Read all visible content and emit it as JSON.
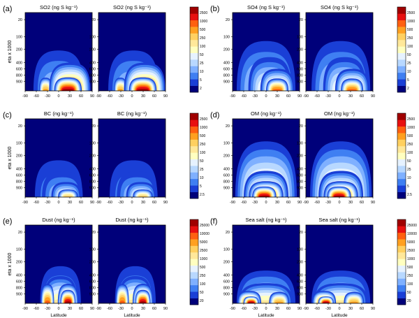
{
  "chart_data": [
    {
      "type": "heatmap",
      "panel_label": "(a)",
      "titles": [
        "SO2 (ng S kg⁻¹)",
        "SO2 (ng S kg⁻¹)"
      ],
      "xlabel": "",
      "ylabel": "eta x 1000",
      "xticks": [
        "-90",
        "-60",
        "-30",
        "0",
        "30",
        "60",
        "90"
      ],
      "yticks": [
        "20",
        "100",
        "200",
        "400",
        "600",
        "800",
        "900"
      ],
      "colorbar_ticks": [
        "2500",
        "1000",
        "500",
        "250",
        "100",
        "50",
        "25",
        "10",
        "5",
        "2"
      ],
      "colors": [
        "#00007a",
        "#1a3fd6",
        "#3f7ff2",
        "#7fb0ff",
        "#b8d8ff",
        "#e6f2ff",
        "#ffffc0",
        "#ffe89a",
        "#ffd060",
        "#ffa020",
        "#ff6010",
        "#e81010",
        "#a00000"
      ],
      "blobs": [
        {
          "lat": 30,
          "top": 420,
          "halfw": 55,
          "level": 10
        },
        {
          "lat": 25,
          "top": 700,
          "halfw": 35,
          "level": 12
        },
        {
          "lat": -35,
          "top": 700,
          "halfw": 15,
          "level": 9
        },
        {
          "lat": 0,
          "top": 150,
          "halfw": 75,
          "level": 4
        }
      ]
    },
    {
      "type": "heatmap",
      "panel_label": "(b)",
      "titles": [
        "SO4 (ng S kg⁻¹)",
        "SO4 (ng S kg⁻¹)"
      ],
      "xlabel": "",
      "ylabel": "",
      "xticks": [
        "-90",
        "-60",
        "-30",
        "0",
        "30",
        "60",
        "90"
      ],
      "yticks": [
        "20",
        "100",
        "200",
        "400",
        "600",
        "800",
        "900"
      ],
      "colorbar_ticks": [
        "2500",
        "1000",
        "500",
        "250",
        "100",
        "50",
        "25",
        "10",
        "5",
        "2"
      ],
      "colors": [
        "#00007a",
        "#1a3fd6",
        "#3f7ff2",
        "#7fb0ff",
        "#b8d8ff",
        "#e6f2ff",
        "#ffffc0",
        "#ffe89a",
        "#ffd060",
        "#ffa020",
        "#ff6010",
        "#e81010",
        "#a00000"
      ],
      "blobs": [
        {
          "lat": 0,
          "top": 60,
          "halfw": 85,
          "level": 5
        },
        {
          "lat": 10,
          "top": 300,
          "halfw": 60,
          "level": 6
        },
        {
          "lat": 30,
          "top": 520,
          "halfw": 45,
          "level": 8
        },
        {
          "lat": 30,
          "top": 720,
          "halfw": 28,
          "level": 10
        }
      ]
    },
    {
      "type": "heatmap",
      "panel_label": "(c)",
      "titles": [
        "BC (ng kg⁻¹)",
        "BC (ng kg⁻¹)"
      ],
      "xlabel": "",
      "ylabel": "eta x 1000",
      "xticks": [
        "-90",
        "-60",
        "-30",
        "0",
        "30",
        "60",
        "90"
      ],
      "yticks": [
        "20",
        "100",
        "200",
        "400",
        "600",
        "800",
        "900"
      ],
      "colorbar_ticks": [
        "2500",
        "1000",
        "500",
        "250",
        "100",
        "50",
        "25",
        "10",
        "5",
        "2.5"
      ],
      "colors": [
        "#00007a",
        "#1a3fd6",
        "#3f7ff2",
        "#7fb0ff",
        "#b8d8ff",
        "#e6f2ff",
        "#ffffc0",
        "#ffe89a",
        "#ffd060",
        "#ffa020",
        "#ff6010",
        "#e81010",
        "#a00000"
      ],
      "blobs": [
        {
          "lat": 0,
          "top": 150,
          "halfw": 75,
          "level": 3
        },
        {
          "lat": 10,
          "top": 400,
          "halfw": 60,
          "level": 4
        },
        {
          "lat": 20,
          "top": 650,
          "halfw": 40,
          "level": 6
        },
        {
          "lat": 25,
          "top": 820,
          "halfw": 25,
          "level": 8
        }
      ]
    },
    {
      "type": "heatmap",
      "panel_label": "(d)",
      "titles": [
        "OM (ng kg⁻¹)",
        "OM (ng kg⁻¹)"
      ],
      "xlabel": "",
      "ylabel": "",
      "xticks": [
        "-90",
        "-60",
        "-30",
        "0",
        "30",
        "60",
        "90"
      ],
      "yticks": [
        "20",
        "100",
        "200",
        "400",
        "600",
        "800",
        "900"
      ],
      "colorbar_ticks": [
        "2500",
        "1000",
        "500",
        "250",
        "100",
        "50",
        "25",
        "10",
        "5",
        "2.5"
      ],
      "colors": [
        "#00007a",
        "#1a3fd6",
        "#3f7ff2",
        "#7fb0ff",
        "#b8d8ff",
        "#e6f2ff",
        "#ffffc0",
        "#ffe89a",
        "#ffd060",
        "#ffa020",
        "#ff6010",
        "#e81010",
        "#a00000"
      ],
      "blobs": [
        {
          "lat": 0,
          "top": 50,
          "halfw": 85,
          "level": 8
        },
        {
          "lat": 0,
          "top": 450,
          "halfw": 60,
          "level": 9
        },
        {
          "lat": 0,
          "top": 650,
          "halfw": 45,
          "level": 11
        },
        {
          "lat": -5,
          "top": 760,
          "halfw": 30,
          "level": 12
        }
      ]
    },
    {
      "type": "heatmap",
      "panel_label": "(e)",
      "titles": [
        "Dust (ng kg⁻¹)",
        "Dust (ng kg⁻¹)"
      ],
      "xlabel": "Latitude",
      "ylabel": "eta x 1000",
      "xticks": [
        "-90",
        "-60",
        "-30",
        "0",
        "30",
        "60",
        "90"
      ],
      "yticks": [
        "20",
        "100",
        "200",
        "400",
        "600",
        "800",
        "900"
      ],
      "colorbar_ticks": [
        "25000",
        "10000",
        "5000",
        "2500",
        "1000",
        "500",
        "250",
        "100",
        "50",
        "20"
      ],
      "colors": [
        "#00007a",
        "#1a3fd6",
        "#3f7ff2",
        "#7fb0ff",
        "#b8d8ff",
        "#e6f2ff",
        "#ffffc0",
        "#ffe89a",
        "#ffd060",
        "#ffa020",
        "#ff6010",
        "#e81010",
        "#a00000"
      ],
      "blobs": [
        {
          "lat": 5,
          "top": 200,
          "halfw": 60,
          "level": 4
        },
        {
          "lat": 5,
          "top": 420,
          "halfw": 45,
          "level": 7
        },
        {
          "lat": -30,
          "top": 580,
          "halfw": 15,
          "level": 10
        },
        {
          "lat": 25,
          "top": 580,
          "halfw": 25,
          "level": 11
        },
        {
          "lat": 25,
          "top": 700,
          "halfw": 18,
          "level": 12
        }
      ]
    },
    {
      "type": "heatmap",
      "panel_label": "(f)",
      "titles": [
        "Sea salt (ng kg⁻¹)",
        "Sea salt (ng kg⁻¹)"
      ],
      "xlabel": "Latitude",
      "ylabel": "",
      "xticks": [
        "-90",
        "-60",
        "-30",
        "0",
        "30",
        "60",
        "90"
      ],
      "yticks": [
        "20",
        "100",
        "200",
        "400",
        "600",
        "800",
        "900"
      ],
      "colorbar_ticks": [
        "25000",
        "10000",
        "5000",
        "2500",
        "1000",
        "500",
        "250",
        "100",
        "50",
        "20"
      ],
      "colors": [
        "#00007a",
        "#1a3fd6",
        "#3f7ff2",
        "#7fb0ff",
        "#b8d8ff",
        "#e6f2ff",
        "#ffffc0",
        "#ffe89a",
        "#ffd060",
        "#ffa020",
        "#ff6010",
        "#e81010",
        "#a00000"
      ],
      "blobs": [
        {
          "lat": 0,
          "top": 300,
          "halfw": 85,
          "level": 5
        },
        {
          "lat": 0,
          "top": 550,
          "halfw": 75,
          "level": 7
        },
        {
          "lat": -45,
          "top": 720,
          "halfw": 30,
          "level": 10
        },
        {
          "lat": 35,
          "top": 740,
          "halfw": 25,
          "level": 9
        },
        {
          "lat": -40,
          "top": 840,
          "halfw": 18,
          "level": 12
        }
      ]
    }
  ]
}
